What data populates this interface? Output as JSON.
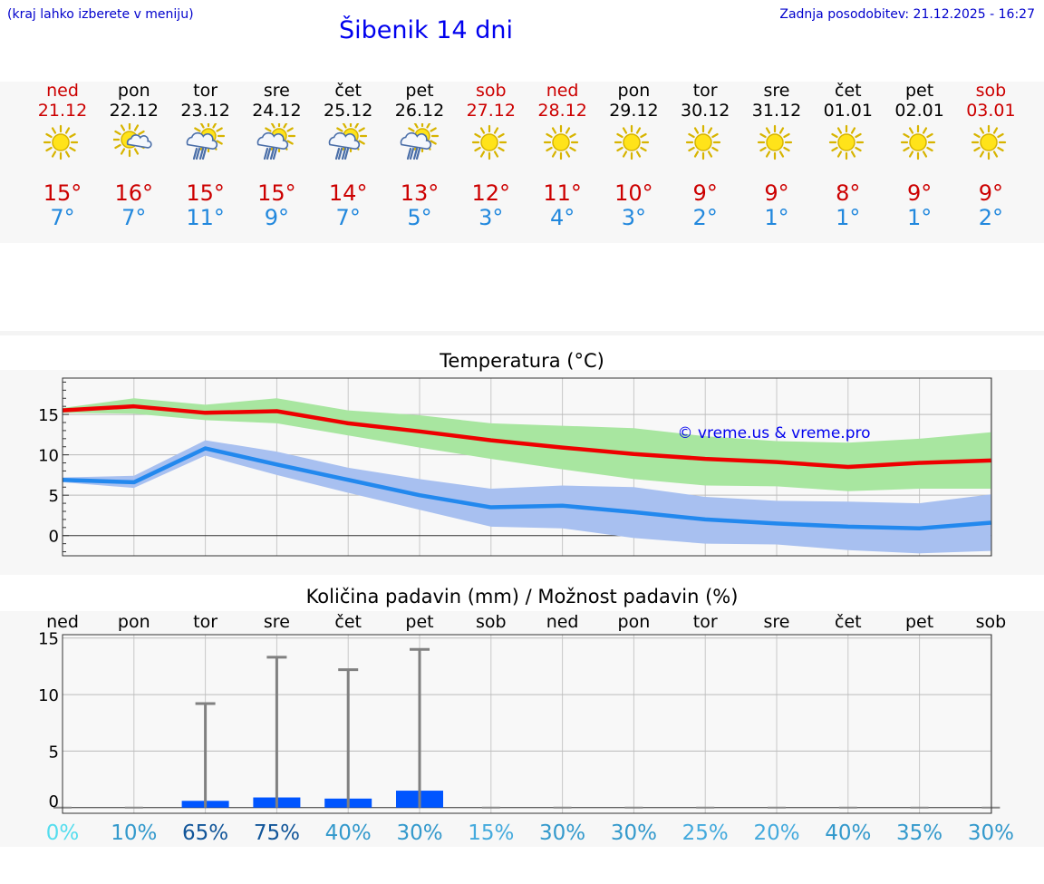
{
  "header": {
    "menu_hint": "(kraj lahko izberete v meniju)",
    "title": "Šibenik 14 dni",
    "updated": "Zadnja posodobitev: 21.12.2025 - 16:27"
  },
  "days": [
    {
      "name": "ned",
      "date": "21.12",
      "weekend": true,
      "icon": "sun-icon",
      "max": "15°",
      "min": "7°"
    },
    {
      "name": "pon",
      "date": "22.12",
      "weekend": false,
      "icon": "sun-cloud-icon",
      "max": "16°",
      "min": "7°"
    },
    {
      "name": "tor",
      "date": "23.12",
      "weekend": false,
      "icon": "sun-rain-icon",
      "max": "15°",
      "min": "11°"
    },
    {
      "name": "sre",
      "date": "24.12",
      "weekend": false,
      "icon": "sun-rain-icon",
      "max": "15°",
      "min": "9°"
    },
    {
      "name": "čet",
      "date": "25.12",
      "weekend": false,
      "icon": "sun-rain-icon",
      "max": "14°",
      "min": "7°"
    },
    {
      "name": "pet",
      "date": "26.12",
      "weekend": false,
      "icon": "sun-rain-icon",
      "max": "13°",
      "min": "5°"
    },
    {
      "name": "sob",
      "date": "27.12",
      "weekend": true,
      "icon": "sun-icon",
      "max": "12°",
      "min": "3°"
    },
    {
      "name": "ned",
      "date": "28.12",
      "weekend": true,
      "icon": "sun-icon",
      "max": "11°",
      "min": "4°"
    },
    {
      "name": "pon",
      "date": "29.12",
      "weekend": false,
      "icon": "sun-icon",
      "max": "10°",
      "min": "3°"
    },
    {
      "name": "tor",
      "date": "30.12",
      "weekend": false,
      "icon": "sun-icon",
      "max": "9°",
      "min": "2°"
    },
    {
      "name": "sre",
      "date": "31.12",
      "weekend": false,
      "icon": "sun-icon",
      "max": "9°",
      "min": "1°"
    },
    {
      "name": "čet",
      "date": "01.01",
      "weekend": false,
      "icon": "sun-icon",
      "max": "8°",
      "min": "1°"
    },
    {
      "name": "pet",
      "date": "02.01",
      "weekend": false,
      "icon": "sun-icon",
      "max": "9°",
      "min": "1°"
    },
    {
      "name": "sob",
      "date": "03.01",
      "weekend": true,
      "icon": "sun-icon",
      "max": "9°",
      "min": "2°"
    }
  ],
  "colors": {
    "weekend": "#cc0000",
    "max_line": "#ee0000",
    "min_line": "#2288ee",
    "max_band": "#a8e6a0",
    "min_band": "#a8c0f0",
    "bar": "#0055ff",
    "whisker": "#808080"
  },
  "chart_data": [
    {
      "type": "line",
      "title": "Temperatura (°C)",
      "watermark": "© vreme.us & vreme.pro",
      "ylim": [
        -2.5,
        19.5
      ],
      "yticks": [
        0,
        5,
        10,
        15
      ],
      "x": [
        0,
        1,
        2,
        3,
        4,
        5,
        6,
        7,
        8,
        9,
        10,
        11,
        12,
        13
      ],
      "series": [
        {
          "name": "max",
          "values": [
            15.5,
            16.0,
            15.2,
            15.4,
            13.9,
            12.9,
            11.8,
            10.9,
            10.1,
            9.5,
            9.1,
            8.5,
            9.0,
            9.3
          ]
        },
        {
          "name": "min",
          "values": [
            6.9,
            6.6,
            10.8,
            8.8,
            6.9,
            5.0,
            3.5,
            3.7,
            2.9,
            2.0,
            1.5,
            1.1,
            0.9,
            1.6
          ]
        }
      ],
      "bands": [
        {
          "name": "max_range",
          "low": [
            15.2,
            15.1,
            14.3,
            13.9,
            12.4,
            10.9,
            9.5,
            8.2,
            7.0,
            6.2,
            6.1,
            5.5,
            5.8,
            5.8
          ],
          "high": [
            15.8,
            17.0,
            16.2,
            17.0,
            15.5,
            14.9,
            13.9,
            13.6,
            13.3,
            12.3,
            11.7,
            11.5,
            12.0,
            12.8
          ]
        },
        {
          "name": "min_range",
          "low": [
            6.6,
            5.9,
            9.9,
            7.5,
            5.3,
            3.2,
            1.1,
            0.9,
            -0.3,
            -1.0,
            -1.1,
            -1.8,
            -2.2,
            -1.9
          ],
          "high": [
            7.2,
            7.4,
            11.8,
            10.4,
            8.4,
            7.0,
            5.8,
            6.2,
            6.0,
            4.8,
            4.3,
            4.2,
            4.0,
            5.1
          ]
        }
      ]
    },
    {
      "type": "bar",
      "title": "Količina padavin (mm) / Možnost padavin (%)",
      "categories": [
        "ned",
        "pon",
        "tor",
        "sre",
        "čet",
        "pet",
        "sob",
        "ned",
        "pon",
        "tor",
        "sre",
        "čet",
        "pet",
        "sob"
      ],
      "ylim": [
        -0.5,
        15.3
      ],
      "yticks": [
        0,
        5,
        10,
        15
      ],
      "values": [
        0,
        0,
        0.6,
        0.9,
        0.8,
        1.5,
        0,
        0,
        0,
        0,
        0,
        0,
        0,
        0
      ],
      "whisker_max": [
        0,
        0,
        9.2,
        13.3,
        12.2,
        14.0,
        0,
        0,
        0,
        0,
        0,
        0,
        0,
        0
      ],
      "probability": [
        "0%",
        "10%",
        "65%",
        "75%",
        "40%",
        "30%",
        "15%",
        "30%",
        "30%",
        "25%",
        "20%",
        "40%",
        "35%",
        "30%"
      ],
      "probability_colors": [
        "#55ddee",
        "#3399cc",
        "#115599",
        "#115599",
        "#3399cc",
        "#3399cc",
        "#44aadd",
        "#3399cc",
        "#3399cc",
        "#44aadd",
        "#44aadd",
        "#3399cc",
        "#3399cc",
        "#3399cc"
      ]
    }
  ]
}
